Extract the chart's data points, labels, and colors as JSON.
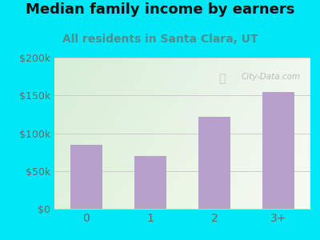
{
  "title": "Median family income by earners",
  "subtitle": "All residents in Santa Clara, UT",
  "categories": [
    "0",
    "1",
    "2",
    "3+"
  ],
  "values": [
    85000,
    70000,
    122000,
    155000
  ],
  "bar_color": "#b8a0cc",
  "title_fontsize": 13,
  "subtitle_fontsize": 10,
  "subtitle_color": "#4a9090",
  "title_color": "#111111",
  "background_outer": "#00e8f8",
  "ylim": [
    0,
    200000
  ],
  "yticks": [
    0,
    50000,
    100000,
    150000,
    200000
  ],
  "ytick_labels": [
    "$0",
    "$50k",
    "$100k",
    "$150k",
    "$200k"
  ],
  "tick_color": "#666666",
  "grid_color": "#cccccc",
  "plot_bg_color_tl": "#d8eed8",
  "plot_bg_color_tr": "#f0f4f0",
  "plot_bg_color_bl": "#e8f4e0",
  "plot_bg_color_br": "#f8f8f0"
}
